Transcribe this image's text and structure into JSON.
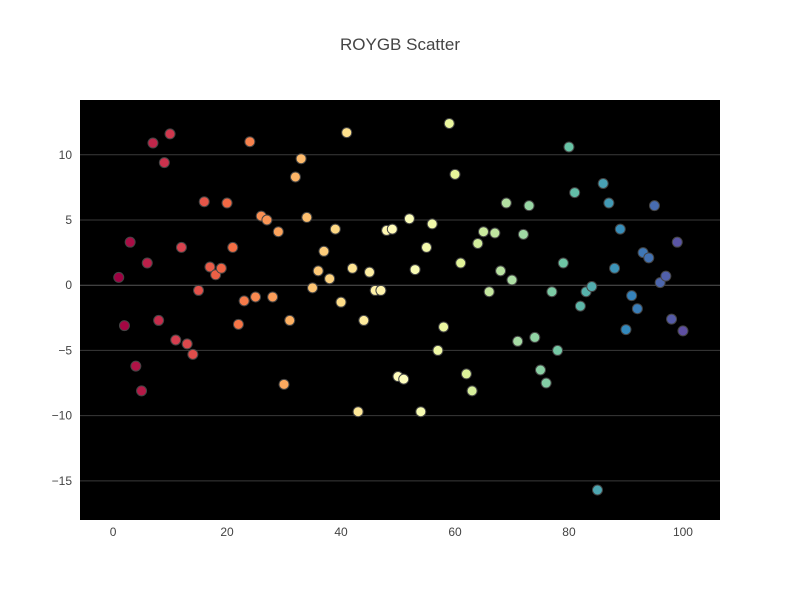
{
  "chart_data": {
    "type": "scatter",
    "title": "ROYGB Scatter",
    "xlabel": "",
    "ylabel": "",
    "xlim": [
      -5.8,
      106.5
    ],
    "ylim": [
      -18,
      14.2
    ],
    "x_ticks": [
      0,
      20,
      40,
      60,
      80,
      100
    ],
    "y_ticks": [
      -15,
      -10,
      -5,
      0,
      5,
      10
    ],
    "grid": "horizontal",
    "legend": "none",
    "plot_background": "#000000",
    "colorscale": "Spectral",
    "colorscale_stops": [
      "#9e0142",
      "#d53e4f",
      "#f46d43",
      "#fdae61",
      "#fee08b",
      "#ffffbf",
      "#e6f598",
      "#abdda4",
      "#66c2a5",
      "#3288bd",
      "#5e4fa2"
    ],
    "marker_outline": "#444444",
    "x": [
      1,
      2,
      3,
      4,
      5,
      6,
      7,
      8,
      9,
      10,
      11,
      12,
      13,
      14,
      15,
      16,
      17,
      18,
      19,
      20,
      21,
      22,
      23,
      24,
      25,
      26,
      27,
      28,
      29,
      30,
      31,
      32,
      33,
      34,
      35,
      36,
      37,
      38,
      39,
      40,
      41,
      42,
      43,
      44,
      45,
      46,
      47,
      48,
      49,
      50,
      51,
      52,
      53,
      54,
      55,
      56,
      57,
      58,
      59,
      60,
      61,
      62,
      63,
      64,
      65,
      66,
      67,
      68,
      69,
      70,
      71,
      72,
      73,
      74,
      75,
      76,
      77,
      78,
      79,
      80,
      81,
      82,
      83,
      84,
      85,
      86,
      87,
      88,
      89,
      90,
      91,
      92,
      93,
      94,
      95,
      96,
      97,
      98,
      99,
      100
    ],
    "y": [
      0.6,
      -3.1,
      3.3,
      -6.2,
      -8.1,
      1.7,
      10.9,
      -2.7,
      9.4,
      11.6,
      -4.2,
      2.9,
      -4.5,
      -5.3,
      -0.4,
      6.4,
      1.4,
      0.8,
      1.3,
      6.3,
      2.9,
      -3.0,
      -1.2,
      11.0,
      -0.9,
      5.3,
      5.0,
      -0.9,
      4.1,
      -7.6,
      -2.7,
      8.3,
      9.7,
      5.2,
      -0.2,
      1.1,
      2.6,
      0.5,
      4.3,
      -1.3,
      11.7,
      1.3,
      -9.7,
      -2.7,
      1.0,
      -0.4,
      -0.4,
      4.2,
      4.3,
      -7.0,
      -7.2,
      5.1,
      1.2,
      -9.7,
      2.9,
      4.7,
      -5.0,
      -3.2,
      12.4,
      8.5,
      1.7,
      -6.8,
      -8.1,
      3.2,
      4.1,
      -0.5,
      4.0,
      1.1,
      6.3,
      0.4,
      -4.3,
      3.9,
      6.1,
      -4.0,
      -6.5,
      -7.5,
      -0.5,
      -5.0,
      1.7,
      10.6,
      7.1,
      -1.6,
      -0.5,
      -0.1,
      -15.7,
      7.8,
      6.3,
      1.3,
      4.3,
      -3.4,
      -0.8,
      -1.8,
      2.5,
      2.1,
      6.1,
      0.2,
      0.7,
      -2.6,
      3.3,
      -3.5
    ]
  }
}
